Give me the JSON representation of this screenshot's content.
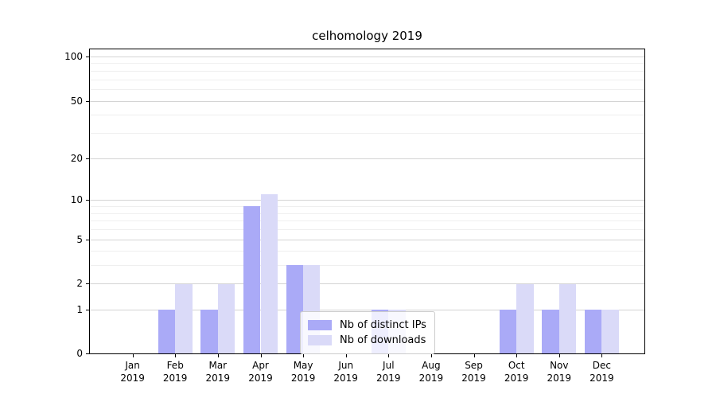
{
  "chart_data": {
    "type": "bar",
    "title": "celhomology 2019",
    "categories": [
      "Jan",
      "Feb",
      "Mar",
      "Apr",
      "May",
      "Jun",
      "Jul",
      "Aug",
      "Sep",
      "Oct",
      "Nov",
      "Dec"
    ],
    "category_year_line": "2019",
    "series": [
      {
        "name": "Nb of distinct IPs",
        "color": "#aaaaf7",
        "values": [
          0,
          1,
          1,
          9,
          3,
          0,
          1,
          0,
          0,
          1,
          1,
          1
        ]
      },
      {
        "name": "Nb of downloads",
        "color": "#dadaf8",
        "values": [
          0,
          2,
          2,
          11,
          3,
          0,
          1,
          0,
          0,
          2,
          2,
          1
        ]
      }
    ],
    "yticks": [
      0,
      1,
      2,
      5,
      10,
      20,
      50,
      100
    ],
    "yticks_minor": [
      3,
      4,
      6,
      7,
      8,
      9,
      30,
      40,
      60,
      70,
      80,
      90
    ],
    "ylim": [
      0,
      112
    ],
    "scale": "log1p",
    "grid": true,
    "legend_position": "lower-center"
  },
  "colors": {
    "bar_distinct_ips": "#aaaaf7",
    "bar_downloads": "#dadaf8",
    "grid_major": "#d4d4d4",
    "grid_minor": "#efefef",
    "axis": "#000000",
    "background": "#ffffff"
  }
}
